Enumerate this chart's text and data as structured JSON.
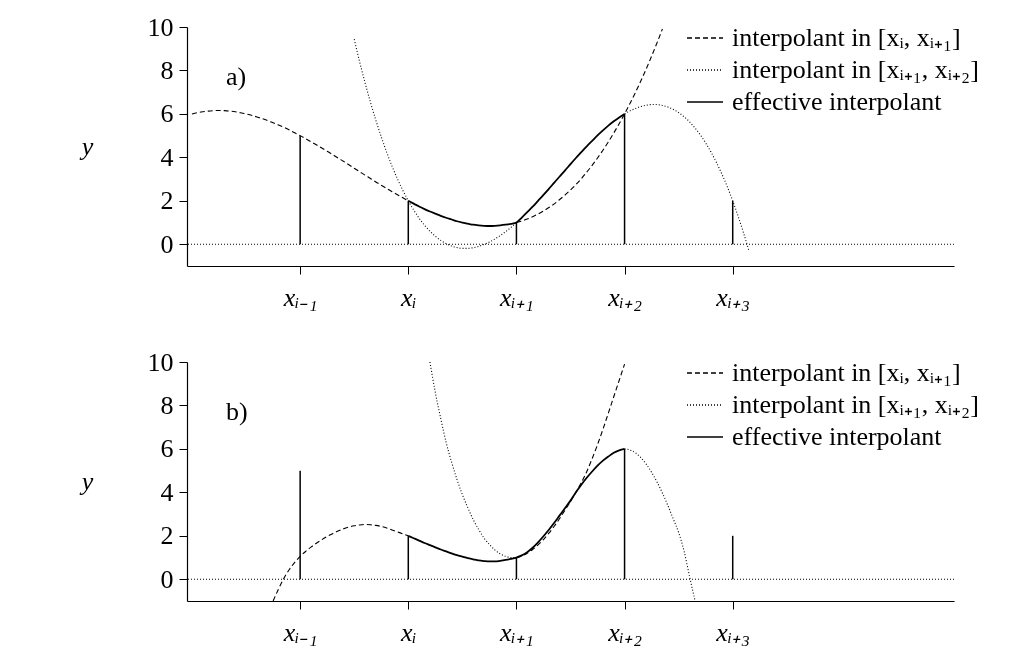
{
  "chart_data": [
    {
      "type": "line",
      "annotations": [
        "a)"
      ],
      "ylabel": "y",
      "ylim": [
        -1,
        10
      ],
      "yticks": [
        0,
        2,
        4,
        6,
        8,
        10
      ],
      "legend": "top right",
      "categories": [
        null,
        null,
        null,
        null,
        null,
        null,
        null,
        null,
        null,
        null,
        null,
        null,
        null,
        null,
        null,
        null,
        null,
        null,
        null,
        null,
        "xᵢ₋₁",
        null,
        null,
        null,
        null,
        null,
        null,
        null,
        null,
        null,
        null,
        null,
        null,
        null,
        null,
        null,
        null,
        null,
        null,
        null,
        "xᵢ",
        null,
        null,
        null,
        null,
        null,
        null,
        null,
        null,
        null,
        null,
        null,
        null,
        null,
        null,
        null,
        null,
        null,
        null,
        null,
        "xᵢ₊₁",
        null,
        null,
        null,
        null,
        null,
        null,
        null,
        null,
        null,
        null,
        null,
        null,
        null,
        null,
        null,
        null,
        null,
        null,
        null,
        "xᵢ₊₂",
        null,
        null,
        null,
        null,
        null,
        null,
        null,
        null,
        null,
        null,
        null,
        null,
        null,
        null,
        null,
        null,
        null,
        null,
        null,
        "xᵢ₊₃",
        null,
        null,
        null,
        null,
        null,
        null,
        null,
        null,
        null,
        null,
        null,
        null,
        null,
        null,
        null,
        null,
        null,
        null,
        null,
        null,
        null,
        null,
        null,
        null,
        null,
        null,
        null,
        null,
        null,
        null,
        null,
        null,
        null,
        null,
        null,
        null,
        null,
        null,
        null,
        null
      ],
      "ref_lines": [
        {
          "axis": "y",
          "value": 0,
          "line_style": "dotted",
          "color": "#000000"
        }
      ],
      "series": [
        {
          "type": "bar",
          "color": "#000000",
          "values": [
            null,
            null,
            null,
            null,
            null,
            null,
            null,
            null,
            null,
            null,
            null,
            null,
            null,
            null,
            null,
            null,
            null,
            null,
            null,
            null,
            5,
            null,
            null,
            null,
            null,
            null,
            null,
            null,
            null,
            null,
            null,
            null,
            null,
            null,
            null,
            null,
            null,
            null,
            null,
            null,
            2,
            null,
            null,
            null,
            null,
            null,
            null,
            null,
            null,
            null,
            null,
            null,
            null,
            null,
            null,
            null,
            null,
            null,
            null,
            null,
            1,
            null,
            null,
            null,
            null,
            null,
            null,
            null,
            null,
            null,
            null,
            null,
            null,
            null,
            null,
            null,
            null,
            null,
            null,
            null,
            6,
            null,
            null,
            null,
            null,
            null,
            null,
            null,
            null,
            null,
            null,
            null,
            null,
            null,
            null,
            null,
            null,
            null,
            null,
            null,
            2,
            null,
            null,
            null,
            null,
            null,
            null,
            null,
            null,
            null,
            null,
            null,
            null,
            null,
            null,
            null,
            null,
            null,
            null,
            null,
            null,
            null,
            null,
            null,
            null,
            null,
            null,
            null,
            null,
            null,
            null,
            null,
            null,
            null,
            null,
            null,
            null,
            null,
            null,
            null,
            null
          ]
        },
        {
          "name": "interpolant in [xᵢ, xᵢ₊₁]",
          "line_style": "dashed",
          "color": "#000000",
          "values": [
            6.0,
            6.06,
            6.1,
            6.13,
            6.15,
            6.16,
            6.15,
            6.13,
            6.1,
            6.05,
            6.0,
            5.94,
            5.86,
            5.78,
            5.69,
            5.59,
            5.49,
            5.38,
            5.26,
            5.13,
            5.0,
            4.86,
            4.72,
            4.58,
            4.43,
            4.28,
            4.13,
            3.97,
            3.82,
            3.66,
            3.5,
            3.34,
            3.18,
            3.03,
            2.87,
            2.72,
            2.57,
            2.42,
            2.28,
            2.14,
            2.0,
            null,
            null,
            null,
            null,
            null,
            null,
            null,
            null,
            null,
            null,
            null,
            null,
            null,
            null,
            null,
            null,
            null,
            null,
            null,
            1.0,
            1.07,
            1.16,
            1.27,
            1.39,
            1.53,
            1.69,
            1.86,
            2.06,
            2.27,
            2.5,
            2.75,
            3.02,
            3.32,
            3.63,
            3.97,
            4.33,
            4.71,
            5.12,
            5.55,
            6.0,
            6.48,
            6.98,
            7.51,
            8.07,
            8.66,
            9.27,
            9.91,
            null,
            null,
            null,
            null,
            null,
            null,
            null,
            null,
            null,
            null,
            null,
            null,
            null,
            null,
            null,
            null,
            null,
            null,
            null,
            null,
            null,
            null,
            null,
            null,
            null,
            null,
            null,
            null,
            null,
            null,
            null,
            null,
            null,
            null,
            null,
            null,
            null,
            null,
            null,
            null,
            null,
            null,
            null,
            null,
            null,
            null,
            null,
            null,
            null,
            null,
            null,
            null,
            null
          ]
        },
        {
          "name": "interpolant in [xᵢ₊₁, xᵢ₊₂]",
          "line_style": "dotted",
          "color": "#000000",
          "values": [
            null,
            null,
            null,
            null,
            null,
            null,
            null,
            null,
            null,
            null,
            null,
            null,
            null,
            null,
            null,
            null,
            null,
            null,
            null,
            null,
            null,
            null,
            null,
            null,
            null,
            null,
            null,
            null,
            null,
            null,
            9.44,
            8.4,
            7.44,
            6.54,
            5.71,
            4.95,
            4.24,
            3.59,
            3.01,
            2.48,
            2.0,
            1.58,
            1.2,
            0.88,
            0.6,
            0.37,
            0.18,
            0.03,
            -0.08,
            -0.15,
            -0.19,
            -0.19,
            -0.16,
            -0.1,
            -0.01,
            0.1,
            0.24,
            0.4,
            0.58,
            0.78,
            1.0,
            null,
            null,
            null,
            null,
            null,
            null,
            null,
            null,
            null,
            null,
            null,
            null,
            null,
            null,
            null,
            null,
            null,
            null,
            null,
            6.0,
            6.14,
            6.25,
            6.34,
            6.4,
            6.43,
            6.43,
            6.39,
            6.32,
            6.21,
            6.06,
            5.87,
            5.64,
            5.36,
            5.04,
            4.66,
            4.24,
            3.76,
            3.23,
            2.65,
            2.0,
            1.29,
            0.53,
            -0.3,
            null,
            null,
            null,
            null,
            null,
            null,
            null,
            null,
            null,
            null,
            null,
            null,
            null,
            null,
            null,
            null,
            null,
            null,
            null,
            null,
            null,
            null,
            null,
            null,
            null,
            null,
            null,
            null,
            null,
            null,
            null,
            null,
            null,
            null,
            null,
            null,
            null
          ]
        },
        {
          "name": "effective interpolant",
          "line_style": "solid",
          "color": "#000000",
          "values": [
            null,
            null,
            null,
            null,
            null,
            null,
            null,
            null,
            null,
            null,
            null,
            null,
            null,
            null,
            null,
            null,
            null,
            null,
            null,
            null,
            null,
            null,
            null,
            null,
            null,
            null,
            null,
            null,
            null,
            null,
            null,
            null,
            null,
            null,
            null,
            null,
            null,
            null,
            null,
            null,
            2.0,
            1.87,
            1.74,
            1.62,
            1.51,
            1.41,
            1.31,
            1.22,
            1.14,
            1.06,
            1.0,
            0.95,
            0.9,
            0.87,
            0.85,
            0.84,
            0.85,
            0.87,
            0.9,
            0.94,
            1.0,
            1.23,
            1.48,
            1.73,
            2.0,
            2.27,
            2.55,
            2.84,
            3.12,
            3.4,
            3.69,
            3.97,
            4.24,
            4.51,
            4.76,
            5.01,
            5.24,
            5.46,
            5.66,
            5.84,
            6.0,
            null,
            null,
            null,
            null,
            null,
            null,
            null,
            null,
            null,
            null,
            null,
            null,
            null,
            null,
            null,
            null,
            null,
            null,
            null,
            null,
            null,
            null,
            null,
            null,
            null,
            null,
            null,
            null,
            null,
            null,
            null,
            null,
            null,
            null,
            null,
            null,
            null,
            null,
            null,
            null,
            null,
            null,
            null,
            null,
            null,
            null,
            null,
            null,
            null,
            null,
            null,
            null,
            null,
            null,
            null,
            null,
            null,
            null,
            null,
            null
          ]
        }
      ]
    },
    {
      "type": "line",
      "annotations": [
        "b)"
      ],
      "ylabel": "y",
      "ylim": [
        -1,
        10
      ],
      "yticks": [
        0,
        2,
        4,
        6,
        8,
        10
      ],
      "legend": "top right",
      "categories": [
        null,
        null,
        null,
        null,
        null,
        null,
        null,
        null,
        null,
        null,
        null,
        null,
        null,
        null,
        null,
        null,
        null,
        null,
        null,
        null,
        "xᵢ₋₁",
        null,
        null,
        null,
        null,
        null,
        null,
        null,
        null,
        null,
        null,
        null,
        null,
        null,
        null,
        null,
        null,
        null,
        null,
        null,
        "xᵢ",
        null,
        null,
        null,
        null,
        null,
        null,
        null,
        null,
        null,
        null,
        null,
        null,
        null,
        null,
        null,
        null,
        null,
        null,
        null,
        "xᵢ₊₁",
        null,
        null,
        null,
        null,
        null,
        null,
        null,
        null,
        null,
        null,
        null,
        null,
        null,
        null,
        null,
        null,
        null,
        null,
        null,
        "xᵢ₊₂",
        null,
        null,
        null,
        null,
        null,
        null,
        null,
        null,
        null,
        null,
        null,
        null,
        null,
        null,
        null,
        null,
        null,
        null,
        null,
        "xᵢ₊₃",
        null,
        null,
        null,
        null,
        null,
        null,
        null,
        null,
        null,
        null,
        null,
        null,
        null,
        null,
        null,
        null,
        null,
        null,
        null,
        null,
        null,
        null,
        null,
        null,
        null,
        null,
        null,
        null,
        null,
        null,
        null,
        null,
        null,
        null,
        null,
        null,
        null,
        null,
        null,
        null
      ],
      "ref_lines": [
        {
          "axis": "y",
          "value": 0,
          "line_style": "dotted",
          "color": "#000000"
        }
      ],
      "series": [
        {
          "type": "bar",
          "color": "#000000",
          "values": [
            null,
            null,
            null,
            null,
            null,
            null,
            null,
            null,
            null,
            null,
            null,
            null,
            null,
            null,
            null,
            null,
            null,
            null,
            null,
            null,
            5,
            null,
            null,
            null,
            null,
            null,
            null,
            null,
            null,
            null,
            null,
            null,
            null,
            null,
            null,
            null,
            null,
            null,
            null,
            null,
            2,
            null,
            null,
            null,
            null,
            null,
            null,
            null,
            null,
            null,
            null,
            null,
            null,
            null,
            null,
            null,
            null,
            null,
            null,
            null,
            1,
            null,
            null,
            null,
            null,
            null,
            null,
            null,
            null,
            null,
            null,
            null,
            null,
            null,
            null,
            null,
            null,
            null,
            null,
            null,
            6,
            null,
            null,
            null,
            null,
            null,
            null,
            null,
            null,
            null,
            null,
            null,
            null,
            null,
            null,
            null,
            null,
            null,
            null,
            null,
            2,
            null,
            null,
            null,
            null,
            null,
            null,
            null,
            null,
            null,
            null,
            null,
            null,
            null,
            null,
            null,
            null,
            null,
            null,
            null,
            null,
            null,
            null,
            null,
            null,
            null,
            null,
            null,
            null,
            null,
            null,
            null,
            null,
            null,
            null,
            null,
            null,
            null,
            null,
            null,
            null
          ]
        },
        {
          "name": "interpolant in [xᵢ, xᵢ₊₁]",
          "line_style": "dashed",
          "color": "#000000",
          "values": [
            null,
            null,
            null,
            null,
            null,
            null,
            null,
            null,
            null,
            null,
            null,
            null,
            null,
            null,
            null,
            -1.0,
            -0.45,
            0.05,
            0.45,
            0.78,
            1.05,
            1.28,
            1.48,
            1.66,
            1.82,
            1.97,
            2.1,
            2.22,
            2.32,
            2.4,
            2.46,
            2.5,
            2.52,
            2.51,
            2.48,
            2.43,
            2.36,
            2.27,
            2.18,
            2.09,
            2.0,
            null,
            null,
            null,
            null,
            null,
            null,
            null,
            null,
            null,
            null,
            null,
            null,
            null,
            null,
            null,
            null,
            null,
            null,
            null,
            1.0,
            1.08,
            1.2,
            1.37,
            1.58,
            1.83,
            2.12,
            2.44,
            2.8,
            3.18,
            3.58,
            4.0,
            4.45,
            4.95,
            5.55,
            6.2,
            6.9,
            7.65,
            8.4,
            9.15,
            9.9,
            null,
            null,
            null,
            null,
            null,
            null,
            null,
            null,
            null,
            null,
            null,
            null,
            null,
            null,
            null,
            null,
            null,
            null,
            null,
            null,
            null,
            null,
            null,
            null,
            null,
            null,
            null,
            null,
            null,
            null,
            null,
            null,
            null,
            null,
            null,
            null,
            null,
            null,
            null,
            null,
            null,
            null,
            null,
            null,
            null,
            null,
            null,
            null,
            null,
            null,
            null,
            null,
            null,
            null,
            null,
            null,
            null,
            null,
            null,
            null
          ]
        },
        {
          "name": "interpolant in [xᵢ₊₁, xᵢ₊₂]",
          "line_style": "dotted",
          "color": "#000000",
          "values": [
            null,
            null,
            null,
            null,
            null,
            null,
            null,
            null,
            null,
            null,
            null,
            null,
            null,
            null,
            null,
            null,
            null,
            null,
            null,
            null,
            null,
            null,
            null,
            null,
            null,
            null,
            null,
            null,
            null,
            null,
            null,
            null,
            null,
            null,
            null,
            null,
            null,
            null,
            null,
            null,
            null,
            null,
            null,
            null,
            10.0,
            8.6,
            7.4,
            6.3,
            5.4,
            4.6,
            3.9,
            3.3,
            2.75,
            2.3,
            1.9,
            1.6,
            1.35,
            1.17,
            1.06,
            1.0,
            1.0,
            null,
            null,
            null,
            null,
            null,
            null,
            null,
            null,
            null,
            null,
            null,
            null,
            null,
            null,
            null,
            null,
            null,
            null,
            null,
            6.0,
            5.95,
            5.82,
            5.6,
            5.3,
            4.92,
            4.48,
            3.97,
            3.4,
            2.78,
            2.15,
            1.3,
            0.15,
            -0.95,
            null,
            null,
            null,
            null,
            null,
            null,
            null,
            null,
            null,
            null,
            null,
            null,
            null,
            null,
            null,
            null,
            null,
            null,
            null,
            null,
            null,
            null,
            null,
            null,
            null,
            null,
            null,
            null,
            null,
            null,
            null,
            null,
            null,
            null,
            null,
            null,
            null,
            null,
            null,
            null,
            null,
            null,
            null,
            null,
            null,
            null,
            null
          ]
        },
        {
          "name": "effective interpolant",
          "line_style": "solid",
          "color": "#000000",
          "values": [
            null,
            null,
            null,
            null,
            null,
            null,
            null,
            null,
            null,
            null,
            null,
            null,
            null,
            null,
            null,
            null,
            null,
            null,
            null,
            null,
            null,
            null,
            null,
            null,
            null,
            null,
            null,
            null,
            null,
            null,
            null,
            null,
            null,
            null,
            null,
            null,
            null,
            null,
            null,
            null,
            2.0,
            1.89,
            1.78,
            1.67,
            1.57,
            1.47,
            1.37,
            1.28,
            1.19,
            1.11,
            1.04,
            0.97,
            0.92,
            0.87,
            0.84,
            0.82,
            0.82,
            0.85,
            0.89,
            0.94,
            1.0,
            1.1,
            1.25,
            1.45,
            1.7,
            1.98,
            2.28,
            2.6,
            2.94,
            3.28,
            3.62,
            4.0,
            4.35,
            4.67,
            4.96,
            5.23,
            5.46,
            5.65,
            5.82,
            5.93,
            6.0,
            null,
            null,
            null,
            null,
            null,
            null,
            null,
            null,
            null,
            null,
            null,
            null,
            null,
            null,
            null,
            null,
            null,
            null,
            null,
            null,
            null,
            null,
            null,
            null,
            null,
            null,
            null,
            null,
            null,
            null,
            null,
            null,
            null,
            null,
            null,
            null,
            null,
            null,
            null,
            null,
            null,
            null,
            null,
            null,
            null,
            null,
            null,
            null,
            null,
            null,
            null,
            null,
            null,
            null,
            null,
            null,
            null,
            null,
            null,
            null
          ]
        }
      ]
    }
  ]
}
